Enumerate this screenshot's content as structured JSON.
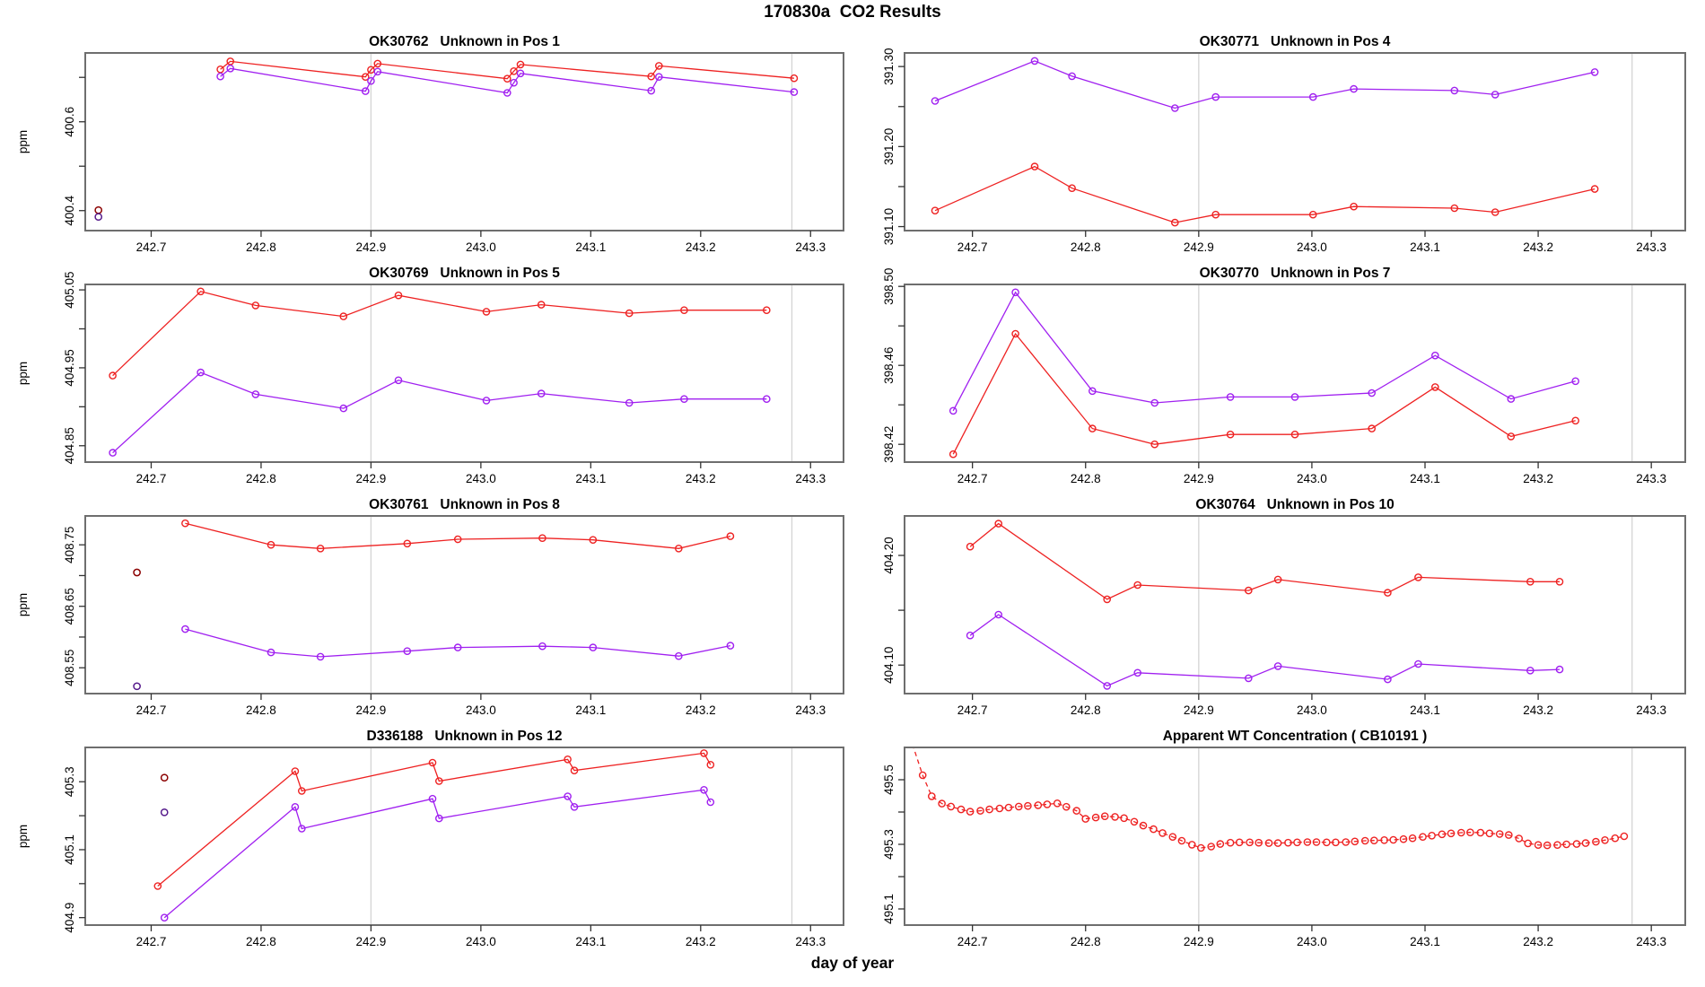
{
  "page_title": "170830a  CO2 Results",
  "xlabel": "day of year",
  "colors": {
    "red": "#ee2222",
    "purple": "#a020f0",
    "dark_red": "#8b0000",
    "dark_purple": "#551a8b",
    "grid": "#d4d4d4",
    "box": "#6e6e6e",
    "tick": "#333333"
  },
  "x_axis": {
    "min": 242.64,
    "max": 243.33,
    "ticks": [
      242.7,
      242.8,
      242.9,
      243.0,
      243.1,
      243.2,
      243.3
    ],
    "tick_labels": [
      "242.7",
      "242.8",
      "242.9",
      "243.0",
      "243.1",
      "243.2",
      "243.3"
    ],
    "grid_lines": [
      242.9,
      243.283
    ]
  },
  "chart_data": [
    {
      "type": "line",
      "title": "OK30762   Unknown in Pos 1",
      "ylabel": "ppm",
      "ylim": [
        400.355,
        400.755
      ],
      "yticks": [
        {
          "v": 400.4,
          "label": "400.4"
        },
        {
          "v": 400.5
        },
        {
          "v": 400.6,
          "label": "400.6"
        },
        {
          "v": 400.7
        }
      ],
      "series": [
        {
          "name": "red-series",
          "color": "red",
          "x": [
            242.763,
            242.772,
            242.895,
            242.9,
            242.906,
            243.024,
            243.03,
            243.036,
            243.155,
            243.162,
            243.285
          ],
          "y": [
            400.718,
            400.736,
            400.701,
            400.717,
            400.731,
            400.697,
            400.714,
            400.729,
            400.702,
            400.726,
            400.698
          ]
        },
        {
          "name": "purple-series",
          "color": "purple",
          "x": [
            242.763,
            242.772,
            242.895,
            242.9,
            242.906,
            243.024,
            243.03,
            243.036,
            243.155,
            243.162,
            243.285
          ],
          "y": [
            400.702,
            400.72,
            400.669,
            400.692,
            400.713,
            400.665,
            400.688,
            400.709,
            400.67,
            400.701,
            400.667
          ]
        }
      ],
      "extra_points": [
        {
          "color": "dark_red",
          "x": 242.652,
          "y": 400.401
        },
        {
          "color": "dark_purple",
          "x": 242.652,
          "y": 400.386
        }
      ]
    },
    {
      "type": "line",
      "title": "OK30771   Unknown in Pos 4",
      "ylabel": "ppm",
      "ylim": [
        391.095,
        391.317
      ],
      "yticks": [
        {
          "v": 391.1,
          "label": "391.10"
        },
        {
          "v": 391.15
        },
        {
          "v": 391.2,
          "label": "391.20"
        },
        {
          "v": 391.25
        },
        {
          "v": 391.3,
          "label": "391.30"
        }
      ],
      "series": [
        {
          "name": "red-series",
          "color": "red",
          "x": [
            242.667,
            242.755,
            242.788,
            242.879,
            242.915,
            243.001,
            243.037,
            243.126,
            243.162,
            243.25
          ],
          "y": [
            391.12,
            391.175,
            391.148,
            391.105,
            391.115,
            391.115,
            391.125,
            391.123,
            391.118,
            391.147
          ]
        },
        {
          "name": "purple-series",
          "color": "purple",
          "x": [
            242.667,
            242.755,
            242.788,
            242.879,
            242.915,
            243.001,
            243.037,
            243.126,
            243.162,
            243.25
          ],
          "y": [
            391.257,
            391.307,
            391.288,
            391.248,
            391.262,
            391.262,
            391.272,
            391.27,
            391.265,
            391.293
          ]
        }
      ],
      "extra_points": []
    },
    {
      "type": "line",
      "title": "OK30769   Unknown in Pos 5",
      "ylabel": "ppm",
      "ylim": [
        404.829,
        405.057
      ],
      "yticks": [
        {
          "v": 404.85,
          "label": "404.85"
        },
        {
          "v": 404.9
        },
        {
          "v": 404.95,
          "label": "404.95"
        },
        {
          "v": 405.0
        },
        {
          "v": 405.05,
          "label": "405.05"
        }
      ],
      "series": [
        {
          "name": "red-series",
          "color": "red",
          "x": [
            242.665,
            242.745,
            242.795,
            242.875,
            242.925,
            243.005,
            243.055,
            243.135,
            243.185,
            243.26
          ],
          "y": [
            404.94,
            405.048,
            405.03,
            405.016,
            405.043,
            405.022,
            405.031,
            405.02,
            405.024,
            405.024
          ]
        },
        {
          "name": "purple-series",
          "color": "purple",
          "x": [
            242.665,
            242.745,
            242.795,
            242.875,
            242.925,
            243.005,
            243.055,
            243.135,
            243.185,
            243.26
          ],
          "y": [
            404.841,
            404.944,
            404.916,
            404.898,
            404.934,
            404.908,
            404.917,
            404.905,
            404.91,
            404.91
          ]
        }
      ],
      "extra_points": []
    },
    {
      "type": "line",
      "title": "OK30770   Unknown in Pos 7",
      "ylabel": "ppm",
      "ylim": [
        398.411,
        398.501
      ],
      "yticks": [
        {
          "v": 398.42,
          "label": "398.42"
        },
        {
          "v": 398.44
        },
        {
          "v": 398.46,
          "label": "398.46"
        },
        {
          "v": 398.48
        },
        {
          "v": 398.5,
          "label": "398.50"
        }
      ],
      "series": [
        {
          "name": "red-series",
          "color": "red",
          "x": [
            242.683,
            242.738,
            242.806,
            242.861,
            242.928,
            242.985,
            243.053,
            243.109,
            243.176,
            243.233
          ],
          "y": [
            398.415,
            398.476,
            398.428,
            398.42,
            398.425,
            398.425,
            398.428,
            398.449,
            398.424,
            398.432
          ]
        },
        {
          "name": "purple-series",
          "color": "purple",
          "x": [
            242.683,
            242.738,
            242.806,
            242.861,
            242.928,
            242.985,
            243.053,
            243.109,
            243.176,
            243.233
          ],
          "y": [
            398.437,
            398.497,
            398.447,
            398.441,
            398.444,
            398.444,
            398.446,
            398.465,
            398.443,
            398.452
          ]
        }
      ],
      "extra_points": []
    },
    {
      "type": "line",
      "title": "OK30761   Unknown in Pos 8",
      "ylabel": "ppm",
      "ylim": [
        408.508,
        408.797
      ],
      "yticks": [
        {
          "v": 408.55,
          "label": "408.55"
        },
        {
          "v": 408.6
        },
        {
          "v": 408.65,
          "label": "408.65"
        },
        {
          "v": 408.7
        },
        {
          "v": 408.75,
          "label": "408.75"
        }
      ],
      "series": [
        {
          "name": "red-series",
          "color": "red",
          "x": [
            242.731,
            242.809,
            242.854,
            242.933,
            242.979,
            243.056,
            243.102,
            243.18,
            243.227
          ],
          "y": [
            408.785,
            408.75,
            408.744,
            408.752,
            408.759,
            408.761,
            408.758,
            408.744,
            408.764
          ]
        },
        {
          "name": "purple-series",
          "color": "purple",
          "x": [
            242.731,
            242.809,
            242.854,
            242.933,
            242.979,
            243.056,
            243.102,
            243.18,
            243.227
          ],
          "y": [
            408.613,
            408.575,
            408.568,
            408.577,
            408.583,
            408.585,
            408.583,
            408.569,
            408.586
          ]
        }
      ],
      "extra_points": [
        {
          "color": "dark_red",
          "x": 242.687,
          "y": 408.705
        },
        {
          "color": "dark_purple",
          "x": 242.687,
          "y": 408.52
        }
      ]
    },
    {
      "type": "line",
      "title": "OK30764   Unknown in Pos 10",
      "ylabel": "ppm",
      "ylim": [
        404.074,
        404.236
      ],
      "yticks": [
        {
          "v": 404.1,
          "label": "404.10"
        },
        {
          "v": 404.15
        },
        {
          "v": 404.2,
          "label": "404.20"
        }
      ],
      "series": [
        {
          "name": "red-series",
          "color": "red",
          "x": [
            242.698,
            242.723,
            242.819,
            242.846,
            242.944,
            242.97,
            243.067,
            243.094,
            243.193,
            243.219
          ],
          "y": [
            404.208,
            404.229,
            404.16,
            404.173,
            404.168,
            404.178,
            404.166,
            404.18,
            404.176,
            404.176
          ]
        },
        {
          "name": "purple-series",
          "color": "purple",
          "x": [
            242.698,
            242.723,
            242.819,
            242.846,
            242.944,
            242.97,
            243.067,
            243.094,
            243.193,
            243.219
          ],
          "y": [
            404.127,
            404.146,
            404.081,
            404.093,
            404.088,
            404.099,
            404.087,
            404.101,
            404.095,
            404.096
          ]
        }
      ],
      "extra_points": []
    },
    {
      "type": "line",
      "title": "D336188   Unknown in Pos 12",
      "ylabel": "ppm",
      "ylim": [
        404.878,
        405.401
      ],
      "yticks": [
        {
          "v": 404.9,
          "label": "404.9"
        },
        {
          "v": 405.0
        },
        {
          "v": 405.1,
          "label": "405.1"
        },
        {
          "v": 405.2
        },
        {
          "v": 405.3,
          "label": "405.3"
        }
      ],
      "series": [
        {
          "name": "red-series",
          "color": "red",
          "x": [
            242.706,
            242.831,
            242.837,
            242.956,
            242.962,
            243.079,
            243.085,
            243.203,
            243.209
          ],
          "y": [
            404.993,
            405.331,
            405.273,
            405.356,
            405.302,
            405.366,
            405.333,
            405.384,
            405.35
          ]
        },
        {
          "name": "purple-series",
          "color": "purple",
          "x": [
            242.712,
            242.831,
            242.837,
            242.956,
            242.962,
            243.079,
            243.085,
            243.203,
            243.209
          ],
          "y": [
            404.9,
            405.226,
            405.162,
            405.25,
            405.192,
            405.257,
            405.226,
            405.276,
            405.24
          ]
        }
      ],
      "extra_points": [
        {
          "color": "dark_red",
          "x": 242.712,
          "y": 405.312
        },
        {
          "color": "dark_purple",
          "x": 242.712,
          "y": 405.21
        }
      ]
    },
    {
      "type": "line",
      "title": "Apparent WT Concentration ( CB10191 )",
      "ylabel": "ppm",
      "ylim": [
        495.05,
        495.6
      ],
      "yticks": [
        {
          "v": 495.1,
          "label": "495.1"
        },
        {
          "v": 495.2
        },
        {
          "v": 495.3,
          "label": "495.3"
        },
        {
          "v": 495.4
        },
        {
          "v": 495.5,
          "label": "495.5"
        }
      ],
      "series": [
        {
          "name": "red-series",
          "color": "red",
          "dashed": true,
          "x": [
            242.647,
            242.656,
            242.664,
            242.673,
            242.681,
            242.69,
            242.698,
            242.707,
            242.715,
            242.724,
            242.732,
            242.741,
            242.749,
            242.758,
            242.766,
            242.775,
            242.783,
            242.792,
            242.8,
            242.809,
            242.817,
            242.826,
            242.834,
            242.843,
            242.851,
            242.86,
            242.868,
            242.877,
            242.885,
            242.894,
            242.902,
            242.911,
            242.919,
            242.928,
            242.936,
            242.945,
            242.953,
            242.962,
            242.97,
            242.979,
            242.987,
            242.996,
            243.004,
            243.013,
            243.021,
            243.03,
            243.038,
            243.047,
            243.055,
            243.064,
            243.072,
            243.081,
            243.089,
            243.098,
            243.106,
            243.115,
            243.123,
            243.132,
            243.14,
            243.149,
            243.157,
            243.166,
            243.174,
            243.183,
            243.191,
            243.2,
            243.208,
            243.217,
            243.225,
            243.234,
            243.242,
            243.251,
            243.259,
            243.268,
            243.276
          ],
          "y": [
            495.61,
            495.514,
            495.449,
            495.426,
            495.417,
            495.408,
            495.401,
            495.404,
            495.408,
            495.411,
            495.414,
            495.417,
            495.419,
            495.421,
            495.424,
            495.427,
            495.416,
            495.404,
            495.379,
            495.383,
            495.387,
            495.385,
            495.381,
            495.37,
            495.358,
            495.347,
            495.335,
            495.323,
            495.311,
            495.299,
            495.289,
            495.293,
            495.301,
            495.305,
            495.306,
            495.306,
            495.305,
            495.304,
            495.304,
            495.305,
            495.306,
            495.307,
            495.307,
            495.306,
            495.306,
            495.307,
            495.309,
            495.311,
            495.312,
            495.313,
            495.314,
            495.316,
            495.319,
            495.323,
            495.327,
            495.331,
            495.334,
            495.336,
            495.337,
            495.336,
            495.334,
            495.332,
            495.329,
            495.318,
            495.303,
            495.298,
            495.297,
            495.298,
            495.3,
            495.301,
            495.304,
            495.308,
            495.313,
            495.319,
            495.325
          ]
        }
      ],
      "extra_points": []
    }
  ]
}
